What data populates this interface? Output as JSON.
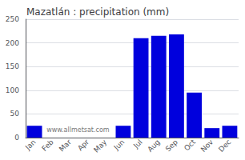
{
  "chart_data": {
    "type": "bar",
    "title": "Mazatlán : precipitation (mm)",
    "categories": [
      "Jan",
      "Feb",
      "Mar",
      "Apr",
      "May",
      "Jun",
      "Jul",
      "Aug",
      "Sep",
      "Oct",
      "Nov",
      "Dec"
    ],
    "values": [
      25,
      0,
      0,
      0,
      0,
      25,
      210,
      215,
      218,
      95,
      20,
      25
    ],
    "color": "#0000dd",
    "ylim": [
      0,
      250
    ],
    "yticks": [
      0,
      50,
      100,
      150,
      200,
      250
    ],
    "grid": true,
    "annotations": [
      "www.allmetsat.com"
    ]
  }
}
